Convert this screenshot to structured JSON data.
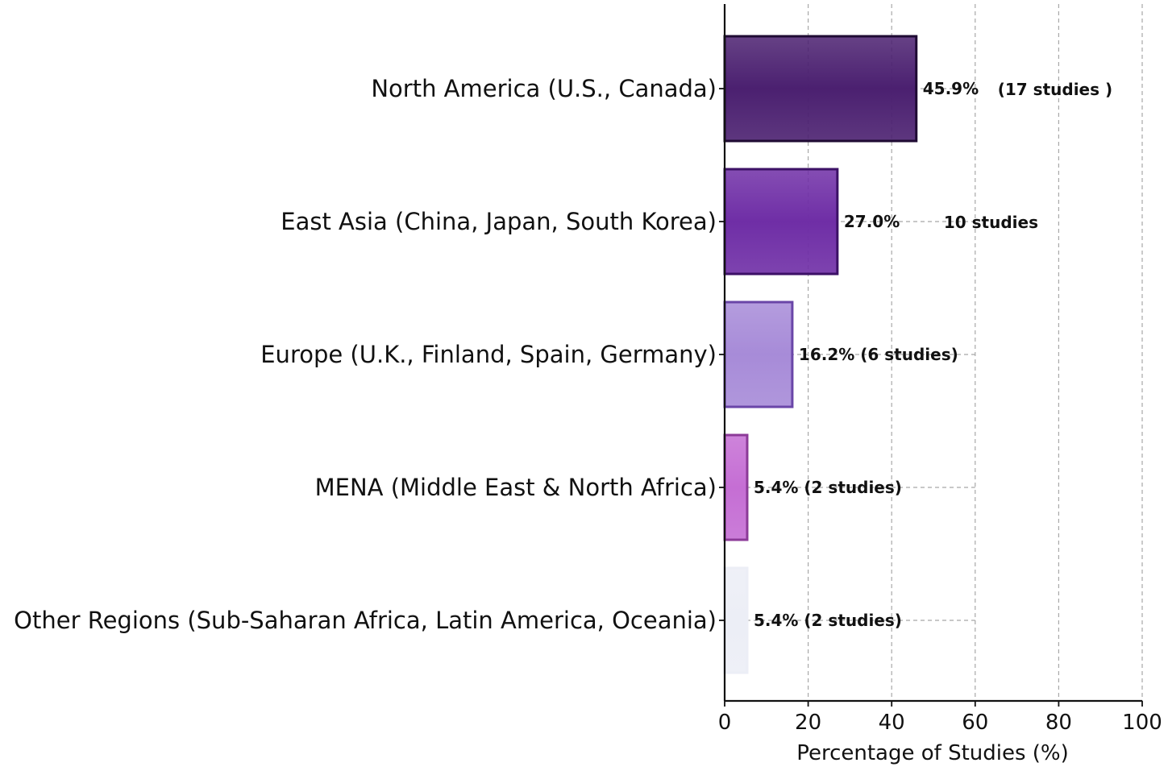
{
  "chart_data": {
    "type": "bar",
    "orientation": "horizontal",
    "title": "",
    "xlabel": "Percentage of Studies (%)",
    "ylabel": "",
    "xlim": [
      0,
      100
    ],
    "xticks": [
      0,
      20,
      40,
      60,
      80,
      100
    ],
    "xtick_labels": [
      "0",
      "20",
      "40",
      "60",
      "80",
      "100"
    ],
    "grid": "x-dashed",
    "categories": [
      "North America (U.S., Canada)",
      "East Asia (China, Japan, South Korea)",
      "Europe (U.K., Finland, Spain, Germany)",
      "MENA (Middle East & North Africa)",
      "Other Regions (Sub-Saharan Africa, Latin America, Oceania)"
    ],
    "values": [
      45.9,
      27.0,
      16.2,
      5.4,
      5.4
    ],
    "counts": [
      17,
      10,
      6,
      2,
      2
    ],
    "data_labels": [
      {
        "pct": "45.9%",
        "count": "(17 studies )"
      },
      {
        "pct": "27.0%",
        "count": "10 studies"
      },
      {
        "pct": "16.2% (6 studies)",
        "count": ""
      },
      {
        "pct": "5.4% (2 studies)",
        "count": ""
      },
      {
        "pct": "5.4% (2 studies)",
        "count": ""
      }
    ],
    "colors": [
      "#4b2070",
      "#6f2ea6",
      "#a78bd8",
      "#c56ed4",
      "#eceef6"
    ],
    "edge_colors": [
      "#1f0b33",
      "#3c1166",
      "#6a46a8",
      "#8c3a98",
      "#eceef6"
    ]
  }
}
